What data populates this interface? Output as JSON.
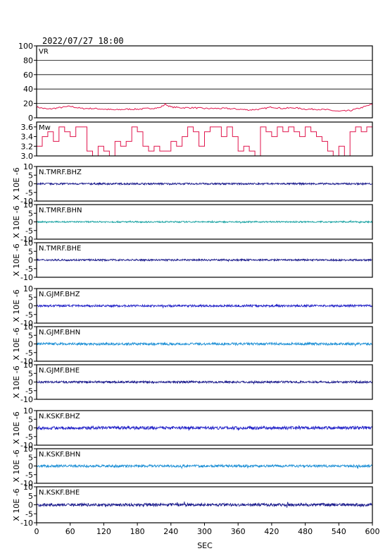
{
  "header": {
    "datetime": "2022/07/27 18:00"
  },
  "x_axis": {
    "label": "SEC",
    "ticks": [
      0,
      60,
      120,
      180,
      240,
      300,
      360,
      420,
      480,
      540,
      600
    ],
    "range": [
      0,
      600
    ]
  },
  "y_unit_label": "X 10E -6",
  "colors": {
    "vr_line": "#e0144c",
    "mw_line": "#e0144c",
    "blue_dark": "#1a1a8c",
    "blue_mid": "#2323c8",
    "blue_light": "#1e90d6",
    "teal": "#17a2a2",
    "frame": "#000000"
  },
  "chart_data": [
    {
      "type": "line",
      "label": "VR",
      "ylim": [
        0,
        100
      ],
      "yticks": [
        0,
        20,
        40,
        60,
        80,
        100
      ],
      "grid": true,
      "color": "#e0144c",
      "x": [
        0,
        20,
        40,
        60,
        80,
        100,
        120,
        140,
        160,
        180,
        200,
        220,
        230,
        240,
        260,
        280,
        300,
        320,
        340,
        360,
        380,
        400,
        420,
        440,
        460,
        480,
        500,
        520,
        540,
        560,
        580,
        600
      ],
      "values": [
        15,
        12,
        14,
        16,
        13,
        13,
        12,
        11,
        12,
        12,
        13,
        14,
        19,
        15,
        14,
        14,
        13,
        13,
        13,
        12,
        11,
        12,
        15,
        13,
        14,
        12,
        12,
        11,
        9,
        10,
        14,
        19
      ]
    },
    {
      "type": "line",
      "label": "Mw",
      "ylim": [
        3.0,
        3.7
      ],
      "yticks": [
        3.0,
        3.2,
        3.4,
        3.6
      ],
      "ytick_labels": [
        "3.0",
        "3.2",
        "3.4",
        "3.6"
      ],
      "grid": false,
      "color": "#e0144c",
      "x": [
        0,
        10,
        20,
        30,
        40,
        50,
        60,
        70,
        80,
        90,
        100,
        110,
        120,
        130,
        140,
        150,
        160,
        170,
        180,
        190,
        200,
        210,
        220,
        230,
        240,
        250,
        260,
        270,
        280,
        290,
        300,
        310,
        320,
        330,
        340,
        350,
        360,
        370,
        380,
        390,
        400,
        410,
        420,
        430,
        440,
        450,
        460,
        470,
        480,
        490,
        500,
        510,
        520,
        530,
        540,
        550,
        560,
        570,
        580,
        590,
        600
      ],
      "values": [
        3.2,
        3.4,
        3.5,
        3.3,
        3.6,
        3.5,
        3.4,
        3.6,
        3.6,
        3.1,
        3.0,
        3.2,
        3.1,
        3.0,
        3.3,
        3.2,
        3.3,
        3.6,
        3.5,
        3.2,
        3.1,
        3.2,
        3.1,
        3.1,
        3.3,
        3.2,
        3.4,
        3.6,
        3.5,
        3.2,
        3.5,
        3.6,
        3.6,
        3.4,
        3.6,
        3.4,
        3.1,
        3.2,
        3.1,
        3.0,
        3.6,
        3.5,
        3.4,
        3.6,
        3.5,
        3.6,
        3.5,
        3.4,
        3.6,
        3.5,
        3.4,
        3.3,
        3.1,
        3.0,
        3.2,
        3.0,
        3.5,
        3.6,
        3.5,
        3.6,
        3.6
      ]
    },
    {
      "type": "line",
      "label": "N.TMRF.BHZ",
      "ylim": [
        -10,
        10
      ],
      "yticks": [
        -10,
        -5,
        0,
        5,
        10
      ],
      "color": "#1a1a8c",
      "amplitude": 0.5
    },
    {
      "type": "line",
      "label": "N.TMRF.BHN",
      "ylim": [
        -10,
        10
      ],
      "yticks": [
        -10,
        -5,
        0,
        5,
        10
      ],
      "color": "#17a2a2",
      "amplitude": 0.4
    },
    {
      "type": "line",
      "label": "N.TMRF.BHE",
      "ylim": [
        -10,
        10
      ],
      "yticks": [
        -10,
        -5,
        0,
        5,
        10
      ],
      "color": "#1a1a8c",
      "amplitude": 0.5
    },
    {
      "type": "line",
      "label": "N.GJMF.BHZ",
      "ylim": [
        -10,
        10
      ],
      "yticks": [
        -10,
        -5,
        0,
        5,
        10
      ],
      "color": "#2323c8",
      "amplitude": 0.6
    },
    {
      "type": "line",
      "label": "N.GJMF.BHN",
      "ylim": [
        -10,
        10
      ],
      "yticks": [
        -10,
        -5,
        0,
        5,
        10
      ],
      "color": "#1e90d6",
      "amplitude": 0.7
    },
    {
      "type": "line",
      "label": "N.GJMF.BHE",
      "ylim": [
        -10,
        10
      ],
      "yticks": [
        -10,
        -5,
        0,
        5,
        10
      ],
      "color": "#1a1a8c",
      "amplitude": 0.6
    },
    {
      "type": "line",
      "label": "N.KSKF.BHZ",
      "ylim": [
        -10,
        10
      ],
      "yticks": [
        -10,
        -5,
        0,
        5,
        10
      ],
      "color": "#2323c8",
      "amplitude": 0.9
    },
    {
      "type": "line",
      "label": "N.KSKF.BHN",
      "ylim": [
        -10,
        10
      ],
      "yticks": [
        -10,
        -5,
        0,
        5,
        10
      ],
      "color": "#1e90d6",
      "amplitude": 0.7
    },
    {
      "type": "line",
      "label": "N.KSKF.BHE",
      "ylim": [
        -10,
        10
      ],
      "yticks": [
        -10,
        -5,
        0,
        5,
        10
      ],
      "color": "#1a1a8c",
      "amplitude": 0.8
    }
  ]
}
